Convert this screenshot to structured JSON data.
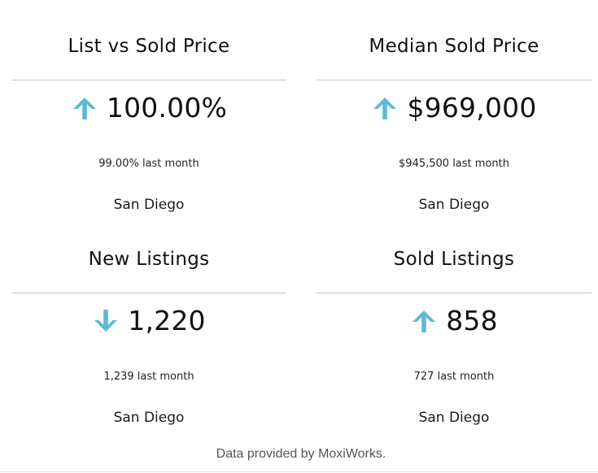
{
  "colors": {
    "arrow": "#5bbad5",
    "divider": "#c4c4c4",
    "footer_text": "#555555"
  },
  "cards": [
    {
      "title": "List vs Sold Price",
      "trend_icon": "arrow-up-icon",
      "value": "100.00%",
      "last_month": "99.00% last month",
      "location": "San Diego"
    },
    {
      "title": "Median Sold Price",
      "trend_icon": "arrow-up-icon",
      "value": "$969,000",
      "last_month": "$945,500 last month",
      "location": "San Diego"
    },
    {
      "title": "New Listings",
      "trend_icon": "arrow-down-icon",
      "value": "1,220",
      "last_month": "1,239 last month",
      "location": "San Diego"
    },
    {
      "title": "Sold Listings",
      "trend_icon": "arrow-up-icon",
      "value": "858",
      "last_month": "727 last month",
      "location": "San Diego"
    }
  ],
  "footer": {
    "text": "Data provided by MoxiWorks."
  }
}
